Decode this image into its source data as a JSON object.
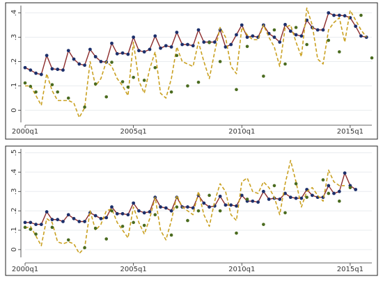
{
  "chart_data": [
    {
      "type": "line",
      "x_ticks": [
        "2000q1",
        "2005q1",
        "2010q1",
        "2015q1"
      ],
      "x_range": [
        "2000q1",
        "2016q1"
      ],
      "y_ticks": [
        "0",
        ".1",
        ".2",
        ".3",
        ".4"
      ],
      "ylim": [
        -0.05,
        0.43
      ],
      "grid": "horizontal",
      "legend": "none",
      "series": [
        {
          "kind": "line-markers",
          "color": "#8c2b2b",
          "marker_color": "#1c2f6b",
          "start": "2000q1",
          "values": [
            0.175,
            0.165,
            0.152,
            0.147,
            0.225,
            0.17,
            0.168,
            0.165,
            0.245,
            0.21,
            0.19,
            0.185,
            0.25,
            0.22,
            0.2,
            0.198,
            0.275,
            0.232,
            0.235,
            0.23,
            0.3,
            0.245,
            0.24,
            0.25,
            0.305,
            0.255,
            0.265,
            0.26,
            0.32,
            0.27,
            0.27,
            0.265,
            0.33,
            0.28,
            0.28,
            0.28,
            0.33,
            0.26,
            0.27,
            0.31,
            0.35,
            0.3,
            0.305,
            0.3,
            0.35,
            0.315,
            0.3,
            0.28,
            0.352,
            0.325,
            0.31,
            0.305,
            0.37,
            0.34,
            0.33,
            0.33,
            0.4,
            0.39,
            0.39,
            0.388,
            0.38,
            0.345,
            0.305,
            0.3
          ]
        },
        {
          "kind": "dashed-line",
          "color": "#c9a020",
          "start": "2000q1",
          "values": [
            0.1,
            0.1,
            0.06,
            0.02,
            0.15,
            0.08,
            0.04,
            0.04,
            0.04,
            0.03,
            -0.03,
            0.01,
            0.2,
            0.1,
            0.13,
            0.2,
            0.18,
            0.13,
            0.1,
            0.06,
            0.28,
            0.12,
            0.07,
            0.17,
            0.24,
            0.07,
            0.05,
            0.13,
            0.26,
            0.2,
            0.19,
            0.18,
            0.28,
            0.2,
            0.13,
            0.24,
            0.34,
            0.3,
            0.18,
            0.15,
            0.34,
            0.31,
            0.29,
            0.29,
            0.35,
            0.3,
            0.26,
            0.18,
            0.34,
            0.35,
            0.28,
            0.22,
            0.42,
            0.35,
            0.21,
            0.19,
            0.33,
            0.36,
            0.38,
            0.28,
            0.41,
            0.37,
            0.33,
            0.3
          ]
        },
        {
          "kind": "points",
          "color": "#4a6b1f",
          "points": [
            [
              "2000q1",
              0.112
            ],
            [
              "2000q2",
              0.098
            ],
            [
              "2000q3",
              0.075
            ],
            [
              "2001q2",
              0.105
            ],
            [
              "2001q3",
              0.075
            ],
            [
              "2002q1",
              0.05
            ],
            [
              "2002q4",
              0.013
            ],
            [
              "2003q2",
              0.108
            ],
            [
              "2003q4",
              0.055
            ],
            [
              "2004q1",
              0.197
            ],
            [
              "2004q3",
              0.117
            ],
            [
              "2004q4",
              0.095
            ],
            [
              "2005q1",
              0.135
            ],
            [
              "2005q3",
              0.123
            ],
            [
              "2006q1",
              0.175
            ],
            [
              "2006q4",
              0.075
            ],
            [
              "2007q1",
              0.225
            ],
            [
              "2007q3",
              0.1
            ],
            [
              "2008q1",
              0.115
            ],
            [
              "2008q3",
              0.278
            ],
            [
              "2009q1",
              0.2
            ],
            [
              "2009q4",
              0.085
            ],
            [
              "2010q2",
              0.262
            ],
            [
              "2011q1",
              0.14
            ],
            [
              "2011q3",
              0.33
            ],
            [
              "2012q1",
              0.19
            ],
            [
              "2012q3",
              0.34
            ],
            [
              "2013q1",
              0.27
            ],
            [
              "2014q1",
              0.287
            ],
            [
              "2014q3",
              0.24
            ],
            [
              "2015q3",
              0.39
            ],
            [
              "2016q1",
              0.215
            ]
          ]
        }
      ]
    },
    {
      "type": "line",
      "x_ticks": [
        "2000q1",
        "2005q1",
        "2010q1",
        "2015q1"
      ],
      "x_range": [
        "2000q1",
        "2016q1"
      ],
      "y_ticks": [
        "0",
        ".1",
        ".2",
        ".3",
        ".4",
        ".5"
      ],
      "ylim": [
        -0.04,
        0.52
      ],
      "grid": "horizontal",
      "legend": "none",
      "series": [
        {
          "kind": "line-markers",
          "color": "#8c2b2b",
          "marker_color": "#1c2f6b",
          "start": "2000q1",
          "values": [
            0.14,
            0.14,
            0.13,
            0.13,
            0.195,
            0.155,
            0.155,
            0.145,
            0.18,
            0.16,
            0.145,
            0.145,
            0.19,
            0.175,
            0.16,
            0.165,
            0.22,
            0.185,
            0.185,
            0.18,
            0.24,
            0.2,
            0.19,
            0.195,
            0.27,
            0.22,
            0.215,
            0.2,
            0.27,
            0.22,
            0.22,
            0.215,
            0.28,
            0.24,
            0.22,
            0.225,
            0.275,
            0.23,
            0.23,
            0.225,
            0.28,
            0.25,
            0.25,
            0.245,
            0.3,
            0.26,
            0.265,
            0.26,
            0.29,
            0.27,
            0.265,
            0.265,
            0.31,
            0.28,
            0.27,
            0.27,
            0.33,
            0.29,
            0.3,
            0.395,
            0.33,
            0.31
          ]
        },
        {
          "kind": "dashed-line",
          "color": "#c9a020",
          "start": "2000q1",
          "values": [
            0.11,
            0.12,
            0.07,
            0.02,
            0.16,
            0.14,
            0.04,
            0.03,
            0.04,
            0.03,
            -0.02,
            0.01,
            0.2,
            0.1,
            0.13,
            0.2,
            0.21,
            0.14,
            0.1,
            0.06,
            0.22,
            0.14,
            0.08,
            0.16,
            0.27,
            0.1,
            0.05,
            0.15,
            0.28,
            0.22,
            0.2,
            0.18,
            0.3,
            0.18,
            0.12,
            0.25,
            0.34,
            0.3,
            0.18,
            0.15,
            0.35,
            0.37,
            0.3,
            0.29,
            0.35,
            0.32,
            0.27,
            0.18,
            0.34,
            0.46,
            0.35,
            0.22,
            0.3,
            0.32,
            0.28,
            0.25,
            0.41,
            0.35,
            0.33,
            0.33
          ]
        },
        {
          "kind": "points",
          "color": "#4a6b1f",
          "points": [
            [
              "2000q1",
              0.115
            ],
            [
              "2000q2",
              0.105
            ],
            [
              "2000q3",
              0.08
            ],
            [
              "2001q2",
              0.115
            ],
            [
              "2002q1",
              0.05
            ],
            [
              "2002q4",
              0.01
            ],
            [
              "2003q2",
              0.11
            ],
            [
              "2003q4",
              0.055
            ],
            [
              "2004q1",
              0.2
            ],
            [
              "2004q3",
              0.12
            ],
            [
              "2005q1",
              0.14
            ],
            [
              "2005q3",
              0.125
            ],
            [
              "2006q1",
              0.18
            ],
            [
              "2006q4",
              0.075
            ],
            [
              "2007q1",
              0.22
            ],
            [
              "2007q3",
              0.15
            ],
            [
              "2008q1",
              0.2
            ],
            [
              "2008q3",
              0.28
            ],
            [
              "2009q1",
              0.2
            ],
            [
              "2009q4",
              0.085
            ],
            [
              "2010q2",
              0.26
            ],
            [
              "2011q1",
              0.13
            ],
            [
              "2011q3",
              0.33
            ],
            [
              "2012q1",
              0.19
            ],
            [
              "2012q3",
              0.34
            ],
            [
              "2013q1",
              0.27
            ],
            [
              "2013q4",
              0.36
            ],
            [
              "2014q1",
              0.29
            ],
            [
              "2014q3",
              0.25
            ],
            [
              "2015q1",
              0.32
            ]
          ]
        }
      ]
    }
  ]
}
